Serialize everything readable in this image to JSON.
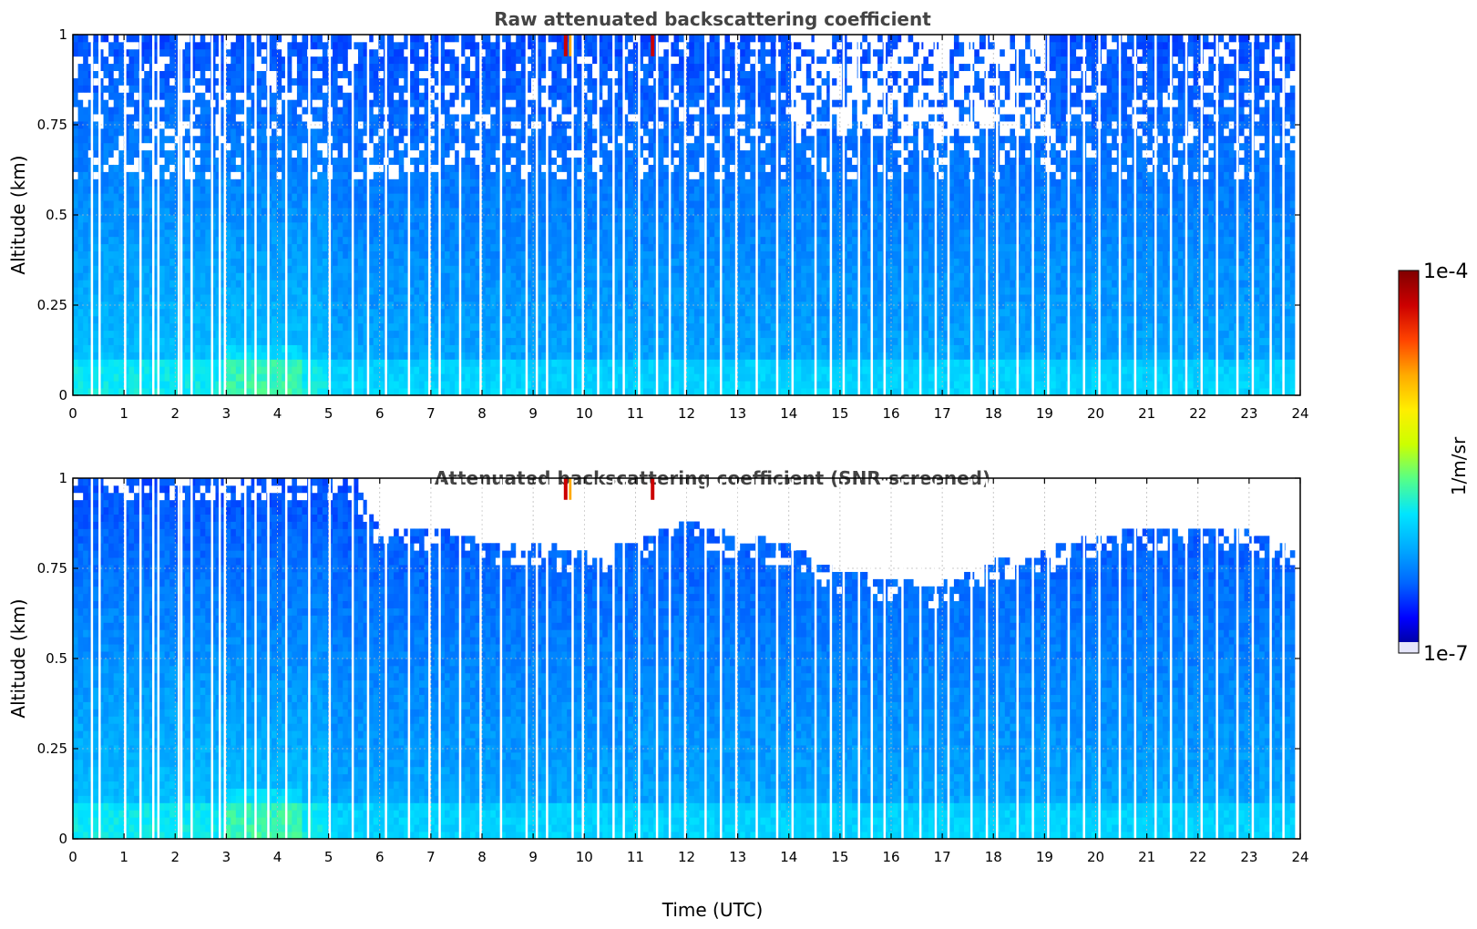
{
  "colormap_stops": [
    "#000080",
    "#0000ff",
    "#0064ff",
    "#00aaff",
    "#00e5ff",
    "#55ff88",
    "#ccff00",
    "#ffee00",
    "#ffaa00",
    "#ff4400",
    "#cc0000",
    "#800000"
  ],
  "colorbar": {
    "top_label": "1e-4",
    "bottom_label": "1e-7",
    "unit_label": "1/m/sr",
    "lowest_color": "#e6e6fa"
  },
  "chart_data": [
    {
      "type": "heatmap",
      "title": "Raw attenuated backscattering coefficient",
      "xlabel": "",
      "ylabel": "Altitude (km)",
      "xlim": [
        0,
        24
      ],
      "ylim": [
        0,
        1
      ],
      "x_ticks": [
        "0",
        "1",
        "2",
        "3",
        "4",
        "5",
        "6",
        "7",
        "8",
        "9",
        "10",
        "11",
        "12",
        "13",
        "14",
        "15",
        "16",
        "17",
        "18",
        "19",
        "20",
        "21",
        "22",
        "23",
        "24"
      ],
      "y_ticks": [
        "0",
        "0.25",
        "0.5",
        "0.75",
        "1"
      ],
      "grid": true,
      "value_scale": "log",
      "color_range": [
        "1e-7",
        "1e-4"
      ],
      "screened": false
    },
    {
      "type": "heatmap",
      "title": "Attenuated backscattering coefficient (SNR-screened)",
      "xlabel": "Time (UTC)",
      "ylabel": "Altitude (km)",
      "xlim": [
        0,
        24
      ],
      "ylim": [
        0,
        1
      ],
      "x_ticks": [
        "0",
        "1",
        "2",
        "3",
        "4",
        "5",
        "6",
        "7",
        "8",
        "9",
        "10",
        "11",
        "12",
        "13",
        "14",
        "15",
        "16",
        "17",
        "18",
        "19",
        "20",
        "21",
        "22",
        "23",
        "24"
      ],
      "y_ticks": [
        "0",
        "0.25",
        "0.5",
        "0.75",
        "1"
      ],
      "grid": true,
      "value_scale": "log",
      "color_range": [
        "1e-7",
        "1e-4"
      ],
      "screened": true,
      "screen_top_km": [
        [
          0,
          1.0
        ],
        [
          5.5,
          1.0
        ],
        [
          6,
          0.86
        ],
        [
          7,
          0.86
        ],
        [
          8,
          0.83
        ],
        [
          9,
          0.82
        ],
        [
          10,
          0.8
        ],
        [
          11,
          0.82
        ],
        [
          12,
          0.88
        ],
        [
          13,
          0.84
        ],
        [
          14,
          0.82
        ],
        [
          14.7,
          0.76
        ],
        [
          15,
          0.74
        ],
        [
          16,
          0.72
        ],
        [
          16.8,
          0.7
        ],
        [
          17.2,
          0.72
        ],
        [
          18,
          0.77
        ],
        [
          19,
          0.8
        ],
        [
          20,
          0.84
        ],
        [
          21,
          0.86
        ],
        [
          22,
          0.87
        ],
        [
          23,
          0.86
        ],
        [
          23.9,
          0.8
        ]
      ]
    }
  ]
}
